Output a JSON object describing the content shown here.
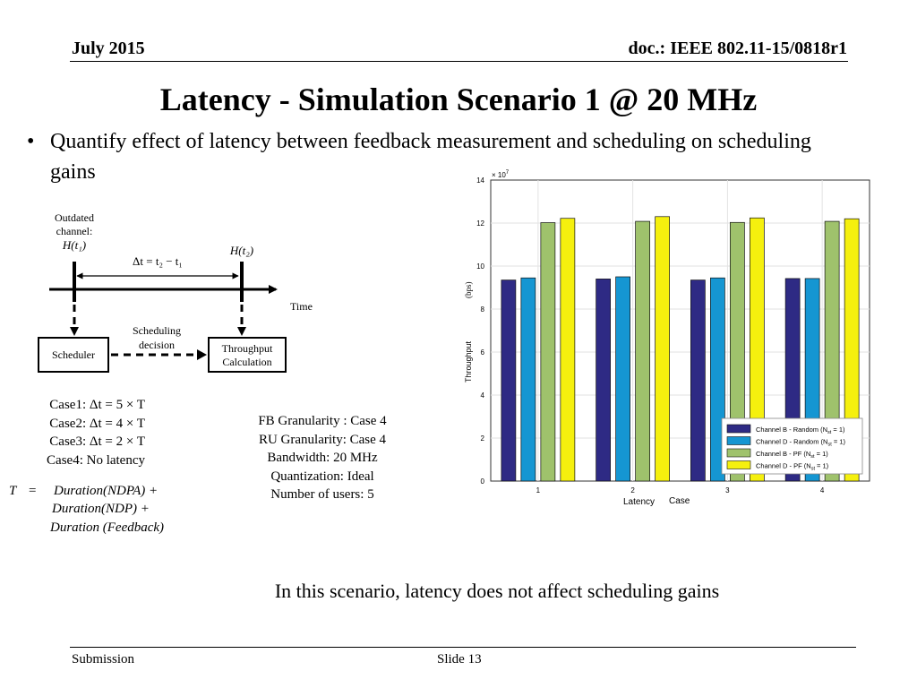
{
  "header": {
    "date": "July 2015",
    "doc": "doc.: IEEE 802.11-15/0818r1"
  },
  "title": "Latency - Simulation Scenario 1 @ 20 MHz",
  "bullet": {
    "symbol": "•",
    "text": "Quantify effect of latency between feedback measurement and scheduling on scheduling gains"
  },
  "diagram": {
    "outdated_line1": "Outdated",
    "outdated_line2": "channel:",
    "h_t1": "H(t₁)",
    "h_t2": "H(t₂)",
    "delta": "Δt = t₂ − t₁",
    "time": "Time",
    "sched_decision_1": "Scheduling",
    "sched_decision_2": "decision",
    "scheduler": "Scheduler",
    "throughput_1": "Throughput",
    "throughput_2": "Calculation"
  },
  "cases": [
    "Case1: Δt = 5 × T",
    "Case2: Δt = 4 × T",
    "Case3: Δt = 2 × T",
    "Case4: No latency"
  ],
  "formula": {
    "lhs": "T",
    "eq": "=",
    "line1": "Duration(NDPA) +",
    "line2": "Duration(NDP) +",
    "line3": "Duration (Feedback)"
  },
  "params": [
    "FB Granularity : Case 4",
    "RU Granularity: Case 4",
    "Bandwidth: 20 MHz",
    "Quantization: Ideal",
    "Number of users: 5"
  ],
  "chart_data": {
    "type": "bar",
    "categories": [
      "1",
      "2",
      "3",
      "4"
    ],
    "series": [
      {
        "name": "Channel B - Random (N",
        "sub": "st",
        "suffix": " = 1)",
        "color": "#2e2a84",
        "values": [
          9.35,
          9.4,
          9.35,
          9.42
        ]
      },
      {
        "name": "Channel D - Random (N",
        "sub": "st",
        "suffix": " = 1)",
        "color": "#1596d2",
        "values": [
          9.45,
          9.5,
          9.45,
          9.42
        ]
      },
      {
        "name": "Channel B - PF (N",
        "sub": "st",
        "suffix": " = 1)",
        "color": "#9fc26c",
        "values": [
          12.02,
          12.08,
          12.03,
          12.08
        ]
      },
      {
        "name": "Channel D - PF (N",
        "sub": "st",
        "suffix": " = 1)",
        "color": "#f5f00e",
        "values": [
          12.22,
          12.3,
          12.24,
          12.2
        ]
      }
    ],
    "ylim": [
      0,
      14
    ],
    "yticks": [
      "0",
      "2",
      "4",
      "6",
      "8",
      "10",
      "12",
      "14"
    ],
    "exponent_base": "× 10",
    "exponent_power": "7",
    "ylabel": "Throughput",
    "yunit": "(bps)",
    "xlabel_prefix": "Latency",
    "xlabel": "Case",
    "legend_position": "bottom-right",
    "grid": true
  },
  "conclusion": "In this scenario, latency does not affect scheduling gains",
  "footer": {
    "left": "Submission",
    "center": "Slide 13"
  }
}
